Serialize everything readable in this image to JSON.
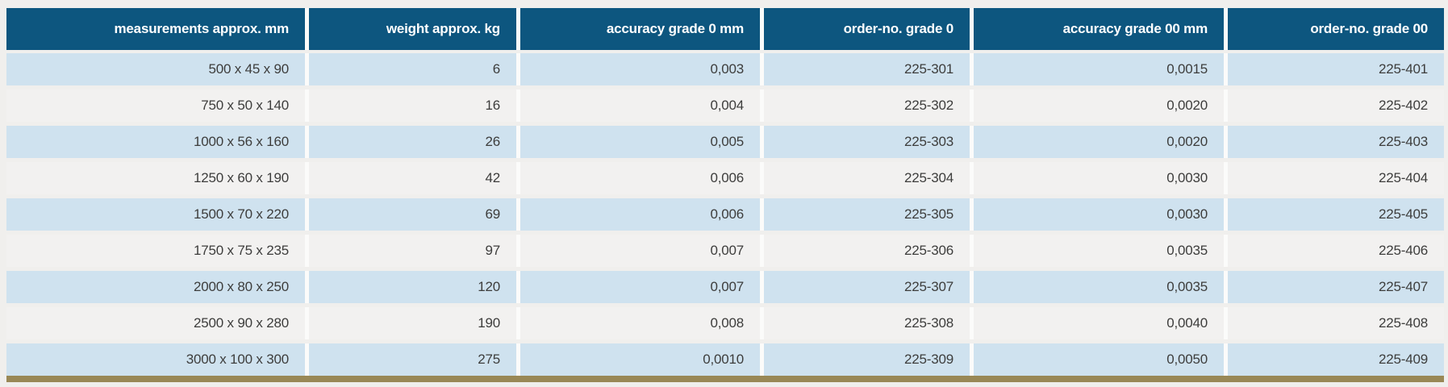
{
  "colors": {
    "page_background": "#f0efed",
    "header_background": "#0d567f",
    "header_text": "#ffffff",
    "row_alternate_blue": "#cfe2ef",
    "row_alternate_gray": "#f2f1f0",
    "cell_text": "#3d3d3c",
    "bottom_accent_bar": "#998856"
  },
  "table": {
    "columns": [
      {
        "key": "measurements",
        "label": "measurements approx. mm"
      },
      {
        "key": "weight",
        "label": "weight approx. kg"
      },
      {
        "key": "accuracy-grade-0",
        "label": "accuracy grade 0 mm"
      },
      {
        "key": "order-no-grade-0",
        "label": "order-no. grade 0"
      },
      {
        "key": "accuracy-grade-00",
        "label": "accuracy grade 00 mm"
      },
      {
        "key": "order-no-grade-00",
        "label": "order-no. grade 00"
      }
    ],
    "rows": [
      [
        "500 x 45 x 90",
        "6",
        "0,003",
        "225-301",
        "0,0015",
        "225-401"
      ],
      [
        "750 x 50 x 140",
        "16",
        "0,004",
        "225-302",
        "0,0020",
        "225-402"
      ],
      [
        "1000 x 56 x 160",
        "26",
        "0,005",
        "225-303",
        "0,0020",
        "225-403"
      ],
      [
        "1250 x 60 x 190",
        "42",
        "0,006",
        "225-304",
        "0,0030",
        "225-404"
      ],
      [
        "1500 x 70 x 220",
        "69",
        "0,006",
        "225-305",
        "0,0030",
        "225-405"
      ],
      [
        "1750 x 75 x 235",
        "97",
        "0,007",
        "225-306",
        "0,0035",
        "225-406"
      ],
      [
        "2000 x 80 x 250",
        "120",
        "0,007",
        "225-307",
        "0,0035",
        "225-407"
      ],
      [
        "2500 x 90 x 280",
        "190",
        "0,008",
        "225-308",
        "0,0040",
        "225-408"
      ],
      [
        "3000 x 100 x 300",
        "275",
        "0,0010",
        "225-309",
        "0,0050",
        "225-409"
      ]
    ]
  }
}
